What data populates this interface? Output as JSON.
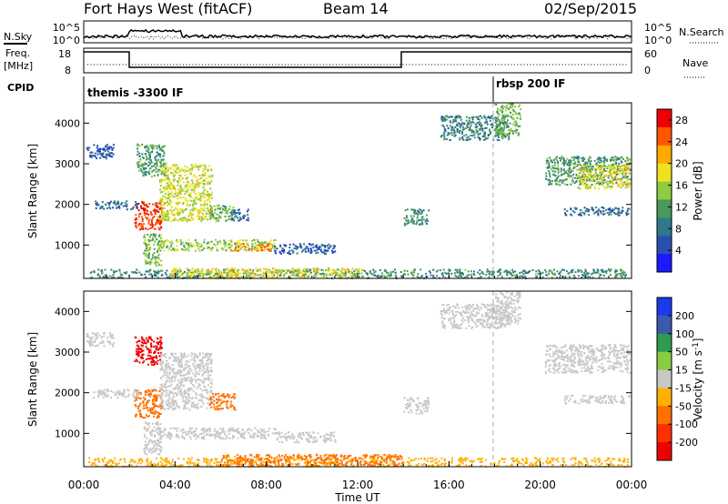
{
  "header": {
    "station": "Fort Hays West (fitACF)",
    "beam": "Beam 14",
    "date": "02/Sep/2015"
  },
  "aux": {
    "nsky_label": "N.Sky",
    "nsky_ticks": [
      "10^5",
      "10^0"
    ],
    "nsearch_label": "N.Search",
    "nsearch_ticks": [
      "10^5",
      "10^0"
    ],
    "freq_label": "Freq.",
    "freq_unit": "[MHz]",
    "freq_ticks": [
      "18",
      "8"
    ],
    "nave_label": "Nave",
    "nave_ticks": [
      "60",
      "0"
    ],
    "cpid_label": "CPID",
    "cpid_entries": [
      {
        "text": "themis -3300 IF",
        "start": "00:00"
      },
      {
        "text": "rbsp 200 IF",
        "start": "18:00"
      }
    ]
  },
  "chart_data": [
    {
      "type": "heatmap",
      "name": "power",
      "ylabel": "Slant Range [km]",
      "yticks": [
        1000,
        2000,
        3000,
        4000
      ],
      "ylim": [
        180,
        4500
      ],
      "xlim": [
        "00:00",
        "24:00"
      ],
      "colorbar": {
        "label": "Power [dB]",
        "ticks": [
          "4",
          "8",
          "12",
          "16",
          "20",
          "24",
          "28"
        ],
        "range": [
          0,
          30
        ],
        "colors": [
          "#1a1aff",
          "#2b4fb0",
          "#2f7a88",
          "#4a9a5a",
          "#8fcc40",
          "#f0e020",
          "#ffaa00",
          "#ff5500",
          "#ee0000"
        ]
      },
      "regions": [
        {
          "t0": 0.1,
          "t1": 1.3,
          "r0": 3150,
          "r1": 3500,
          "value": 6
        },
        {
          "t0": 2.3,
          "t1": 3.6,
          "r0": 2700,
          "r1": 3500,
          "value": 11
        },
        {
          "t0": 2.2,
          "t1": 3.4,
          "r0": 1400,
          "r1": 2100,
          "value": 27
        },
        {
          "t0": 3.3,
          "t1": 5.6,
          "r0": 1600,
          "r1": 3000,
          "value": 17
        },
        {
          "t0": 0.4,
          "t1": 2.4,
          "r0": 1900,
          "r1": 2100,
          "value": 7
        },
        {
          "t0": 5.5,
          "t1": 6.6,
          "r0": 1600,
          "r1": 2000,
          "value": 13
        },
        {
          "t0": 6.4,
          "t1": 7.2,
          "r0": 1600,
          "r1": 1900,
          "value": 7
        },
        {
          "t0": 3.2,
          "t1": 8.4,
          "r0": 880,
          "r1": 1150,
          "value": 15
        },
        {
          "t0": 6.4,
          "t1": 8.2,
          "r0": 870,
          "r1": 1050,
          "value": 23
        },
        {
          "t0": 8.3,
          "t1": 11.0,
          "r0": 800,
          "r1": 1050,
          "value": 6
        },
        {
          "t0": 2.6,
          "t1": 3.4,
          "r0": 500,
          "r1": 1300,
          "value": 14
        },
        {
          "t0": 0.2,
          "t1": 23.8,
          "r0": 200,
          "r1": 420,
          "value": 10
        },
        {
          "t0": 3.8,
          "t1": 12.2,
          "r0": 220,
          "r1": 450,
          "value": 18
        },
        {
          "t0": 14.0,
          "t1": 15.1,
          "r0": 1500,
          "r1": 1900,
          "value": 10
        },
        {
          "t0": 15.6,
          "t1": 18.6,
          "r0": 3600,
          "r1": 4200,
          "value": 9
        },
        {
          "t0": 18.0,
          "t1": 19.1,
          "r0": 3700,
          "r1": 4500,
          "value": 13
        },
        {
          "t0": 20.2,
          "t1": 23.9,
          "r0": 2500,
          "r1": 3200,
          "value": 11
        },
        {
          "t0": 21.6,
          "t1": 23.9,
          "r0": 2400,
          "r1": 3000,
          "value": 18
        },
        {
          "t0": 21.0,
          "t1": 23.9,
          "r0": 1750,
          "r1": 1950,
          "value": 7
        }
      ]
    },
    {
      "type": "heatmap",
      "name": "velocity",
      "ylabel": "Slant Range [km]",
      "yticks": [
        1000,
        2000,
        3000,
        4000
      ],
      "ylim": [
        180,
        4500
      ],
      "xlim": [
        "00:00",
        "24:00"
      ],
      "xticks": [
        "00:00",
        "04:00",
        "08:00",
        "12:00",
        "16:00",
        "20:00",
        "00:00"
      ],
      "xlabel": "Time UT",
      "colorbar": {
        "label": "Velocity [m s-1]",
        "ticks": [
          "200",
          "100",
          "50",
          "15",
          "-15",
          "-50",
          "-100",
          "-200"
        ],
        "colors": [
          "#1a3aee",
          "#3a5ab0",
          "#2f9a50",
          "#88cc44",
          "#c8c8c8",
          "#ffb000",
          "#ff7000",
          "#ff3000",
          "#ee0000"
        ]
      },
      "regions": [
        {
          "t0": 0.1,
          "t1": 1.3,
          "r0": 3150,
          "r1": 3500,
          "value": 0
        },
        {
          "t0": 2.2,
          "t1": 3.4,
          "r0": 2700,
          "r1": 3400,
          "value": -220
        },
        {
          "t0": 2.2,
          "t1": 3.4,
          "r0": 1400,
          "r1": 2100,
          "value": -60
        },
        {
          "t0": 3.3,
          "t1": 5.6,
          "r0": 1600,
          "r1": 3000,
          "value": 0
        },
        {
          "t0": 0.4,
          "t1": 2.4,
          "r0": 1900,
          "r1": 2100,
          "value": 0
        },
        {
          "t0": 5.5,
          "t1": 6.6,
          "r0": 1600,
          "r1": 2000,
          "value": -60
        },
        {
          "t0": 3.2,
          "t1": 8.4,
          "r0": 880,
          "r1": 1150,
          "value": 0
        },
        {
          "t0": 8.3,
          "t1": 11.0,
          "r0": 800,
          "r1": 1050,
          "value": 0
        },
        {
          "t0": 2.6,
          "t1": 3.4,
          "r0": 500,
          "r1": 1300,
          "value": 0
        },
        {
          "t0": 0.2,
          "t1": 23.8,
          "r0": 200,
          "r1": 420,
          "value": -40
        },
        {
          "t0": 6.0,
          "t1": 14.0,
          "r0": 220,
          "r1": 500,
          "value": -55
        },
        {
          "t0": 14.0,
          "t1": 15.1,
          "r0": 1500,
          "r1": 1900,
          "value": 0
        },
        {
          "t0": 15.6,
          "t1": 18.6,
          "r0": 3600,
          "r1": 4200,
          "value": 0
        },
        {
          "t0": 18.0,
          "t1": 19.1,
          "r0": 3700,
          "r1": 4500,
          "value": 0
        },
        {
          "t0": 20.2,
          "t1": 23.9,
          "r0": 2500,
          "r1": 3200,
          "value": 0
        },
        {
          "t0": 21.0,
          "t1": 23.9,
          "r0": 1750,
          "r1": 1950,
          "value": 0
        }
      ]
    }
  ]
}
